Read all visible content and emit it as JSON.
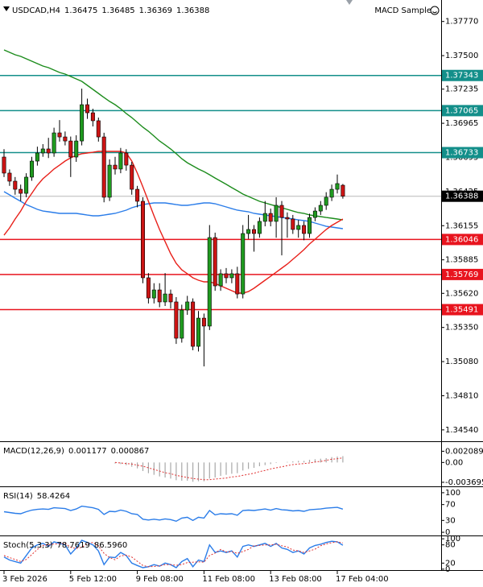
{
  "chart_data": {
    "type": "candlestick",
    "title": "USDCAD,H4",
    "expert": "MACD Sample",
    "up_color": "#1f9a1f",
    "down_color": "#cc1414",
    "current_color": "#000000",
    "categories": [
      "3 Feb 2026",
      null,
      null,
      null,
      null,
      null,
      null,
      null,
      null,
      null,
      null,
      null,
      "5 Feb 12:00",
      null,
      null,
      null,
      null,
      null,
      null,
      null,
      null,
      null,
      null,
      null,
      "9 Feb 08:00",
      null,
      null,
      null,
      null,
      null,
      null,
      null,
      null,
      null,
      null,
      null,
      "11 Feb 08:00",
      null,
      null,
      null,
      null,
      null,
      null,
      null,
      null,
      null,
      null,
      null,
      "13 Feb 08:00",
      null,
      null,
      null,
      null,
      null,
      null,
      null,
      null,
      null,
      null,
      null,
      "17 Feb 04:00",
      null
    ],
    "open": [
      1.36698,
      1.36571,
      1.36507,
      1.36443,
      1.36411,
      1.36539,
      1.36666,
      1.3673,
      1.36762,
      1.3673,
      1.36889,
      1.36857,
      1.36825,
      1.36698,
      1.36825,
      1.37112,
      1.37048,
      1.36985,
      1.36857,
      1.3638,
      1.36634,
      1.36603,
      1.3673,
      1.36634,
      1.36443,
      1.36348,
      1.35743,
      1.35583,
      1.35647,
      1.35552,
      1.35615,
      1.35552,
      1.35265,
      1.35488,
      1.35552,
      1.35201,
      1.35424,
      1.35361,
      1.36061,
      1.35679,
      1.35775,
      1.35743,
      1.35775,
      1.35615,
      1.36093,
      1.36125,
      1.36093,
      1.36189,
      1.36252,
      1.36189,
      1.36316,
      1.3622,
      1.36208,
      1.36125,
      1.36157,
      1.36093,
      1.3622,
      1.36271,
      1.36316,
      1.3638,
      1.36443,
      1.36475
    ],
    "high": [
      1.3676,
      1.366,
      1.3654,
      1.3648,
      1.3657,
      1.367,
      1.3678,
      1.368,
      1.3685,
      1.3693,
      1.3699,
      1.369,
      1.3686,
      1.3687,
      1.37239,
      1.3716,
      1.3708,
      1.3701,
      1.3689,
      1.3668,
      1.367,
      1.3677,
      1.3676,
      1.3666,
      1.3647,
      1.3638,
      1.3578,
      1.357,
      1.357,
      1.3578,
      1.3565,
      1.3559,
      1.3553,
      1.356,
      1.3558,
      1.3548,
      1.3546,
      1.3616,
      1.361,
      1.3581,
      1.3582,
      1.3581,
      1.3583,
      1.3616,
      1.3624,
      1.3616,
      1.3622,
      1.3635,
      1.3629,
      1.3638,
      1.3635,
      1.3626,
      1.3624,
      1.362,
      1.3619,
      1.3625,
      1.363,
      1.3635,
      1.3642,
      1.3648,
      1.3656,
      1.36485
    ],
    "low": [
      1.3654,
      1.3647,
      1.364,
      1.3635,
      1.3638,
      1.3651,
      1.3663,
      1.367,
      1.3669,
      1.367,
      1.3682,
      1.3679,
      1.3654,
      1.3666,
      1.3679,
      1.37,
      1.3694,
      1.3682,
      1.3634,
      1.3635,
      1.3656,
      1.3657,
      1.3659,
      1.364,
      1.363,
      1.357,
      1.3554,
      1.3554,
      1.3551,
      1.3552,
      1.355,
      1.3522,
      1.3523,
      1.3545,
      1.3517,
      1.3516,
      1.35042,
      1.3533,
      1.3564,
      1.3564,
      1.357,
      1.357,
      1.3558,
      1.3558,
      1.3605,
      1.3595,
      1.3606,
      1.3615,
      1.3615,
      1.3606,
      1.3592,
      1.3606,
      1.3609,
      1.3606,
      1.3604,
      1.3606,
      1.3619,
      1.3624,
      1.3628,
      1.3635,
      1.3641,
      1.36369
    ],
    "close": [
      1.36571,
      1.36507,
      1.36443,
      1.36411,
      1.36539,
      1.36666,
      1.3673,
      1.36762,
      1.3673,
      1.36889,
      1.36857,
      1.36825,
      1.36698,
      1.36825,
      1.37112,
      1.37048,
      1.36985,
      1.36857,
      1.3638,
      1.36634,
      1.36603,
      1.3673,
      1.36634,
      1.36443,
      1.36348,
      1.35743,
      1.35583,
      1.35647,
      1.35552,
      1.35615,
      1.35552,
      1.35265,
      1.35488,
      1.35552,
      1.35201,
      1.35424,
      1.35361,
      1.36061,
      1.35679,
      1.35775,
      1.35743,
      1.35775,
      1.35615,
      1.36093,
      1.36125,
      1.36093,
      1.36189,
      1.36252,
      1.36189,
      1.36316,
      1.3622,
      1.36208,
      1.36125,
      1.36157,
      1.36093,
      1.3622,
      1.36271,
      1.36316,
      1.3638,
      1.36443,
      1.36488,
      1.36388
    ],
    "ylim": [
      1.3445,
      1.3794
    ],
    "yticks": [
      {
        "value": 1.3777,
        "label": "1.37770"
      },
      {
        "value": 1.375,
        "label": "1.37500"
      },
      1.37235,
      1.36965,
      1.36695,
      1.36425,
      1.36155,
      1.35885,
      {
        "value": 1.3562,
        "label": "1.35620"
      },
      {
        "value": 1.3535,
        "label": "1.35350"
      },
      {
        "value": 1.3508,
        "label": "1.35080"
      },
      {
        "value": 1.3481,
        "label": "1.34810"
      },
      {
        "value": 1.3454,
        "label": "1.34540"
      }
    ],
    "levels": [
      {
        "value": 1.37343,
        "color": "#138f8a"
      },
      {
        "value": 1.37065,
        "color": "#138f8a"
      },
      {
        "value": 1.36733,
        "color": "#138f8a"
      },
      {
        "value": 1.36046,
        "color": "#e8141e"
      },
      {
        "value": 1.35769,
        "color": "#e8141e"
      },
      {
        "value": 1.35491,
        "color": "#e8141e"
      }
    ],
    "moving_averages": [
      {
        "color": "#1c8c1c",
        "values": [
          1.37545,
          1.37526,
          1.37507,
          1.37494,
          1.37475,
          1.37456,
          1.37437,
          1.37418,
          1.37405,
          1.37386,
          1.37367,
          1.37354,
          1.37335,
          1.37316,
          1.37297,
          1.37265,
          1.37233,
          1.37201,
          1.37169,
          1.37138,
          1.37112,
          1.3708,
          1.37042,
          1.3701,
          1.36972,
          1.36934,
          1.36902,
          1.36864,
          1.36825,
          1.36794,
          1.36762,
          1.36724,
          1.36685,
          1.36653,
          1.36628,
          1.36603,
          1.36583,
          1.36558,
          1.36532,
          1.36507,
          1.36482,
          1.36456,
          1.36431,
          1.36405,
          1.36386,
          1.36367,
          1.36348,
          1.36335,
          1.36322,
          1.3631,
          1.36297,
          1.36284,
          1.36271,
          1.36259,
          1.36252,
          1.3624,
          1.36233,
          1.36227,
          1.3622,
          1.36214,
          1.36208,
          1.36201
        ]
      },
      {
        "color": "#2b7de9",
        "values": [
          1.36424,
          1.36399,
          1.36373,
          1.36348,
          1.36322,
          1.36303,
          1.36284,
          1.36271,
          1.36265,
          1.36259,
          1.36252,
          1.36252,
          1.36252,
          1.36252,
          1.36246,
          1.36239,
          1.36233,
          1.36233,
          1.36239,
          1.36246,
          1.36252,
          1.36265,
          1.36278,
          1.36297,
          1.3631,
          1.36322,
          1.36329,
          1.36335,
          1.36335,
          1.36335,
          1.36329,
          1.36322,
          1.36316,
          1.36316,
          1.36322,
          1.36329,
          1.36335,
          1.36335,
          1.36329,
          1.36316,
          1.36303,
          1.3629,
          1.36278,
          1.36271,
          1.36265,
          1.36252,
          1.36246,
          1.36239,
          1.36233,
          1.36227,
          1.3622,
          1.36214,
          1.36208,
          1.36201,
          1.36195,
          1.36189,
          1.36176,
          1.36163,
          1.3615,
          1.36144,
          1.36138,
          1.36131
        ]
      },
      {
        "color": "#e8201a",
        "values": [
          1.3608,
          1.36138,
          1.36208,
          1.36271,
          1.36348,
          1.36411,
          1.36475,
          1.36526,
          1.36564,
          1.36603,
          1.36634,
          1.36666,
          1.36692,
          1.36711,
          1.36724,
          1.3673,
          1.36736,
          1.36743,
          1.36743,
          1.36743,
          1.36743,
          1.36743,
          1.3673,
          1.36666,
          1.36571,
          1.36462,
          1.36348,
          1.36233,
          1.36125,
          1.36029,
          1.35934,
          1.35857,
          1.35806,
          1.35775,
          1.35743,
          1.35724,
          1.35711,
          1.35711,
          1.35698,
          1.35679,
          1.3566,
          1.35641,
          1.35622,
          1.35622,
          1.35634,
          1.3566,
          1.35692,
          1.35724,
          1.35755,
          1.35787,
          1.35819,
          1.35851,
          1.35889,
          1.35927,
          1.35966,
          1.3601,
          1.36048,
          1.36087,
          1.36125,
          1.36157,
          1.36182,
          1.36208
        ]
      }
    ],
    "panels": [
      {
        "title": "MACD(12,26,9)",
        "ylim": [
          -0.00445,
          0.0035
        ],
        "yticks": [
          0.002089,
          {
            "value": 0,
            "label": "0.00"
          },
          -0.003695
        ],
        "series": [
          {
            "type": "bar",
            "color": "#a8a8a8",
            "values": [
              null,
              null,
              null,
              null,
              null,
              null,
              null,
              null,
              null,
              null,
              null,
              null,
              null,
              null,
              null,
              null,
              null,
              null,
              null,
              null,
              -0.0002,
              -0.0003,
              -0.0005,
              -0.0008,
              -0.0011,
              -0.0016,
              -0.002,
              -0.0023,
              -0.0026,
              -0.0028,
              -0.003,
              -0.0033,
              -0.0034,
              -0.0034,
              -0.0036,
              -0.0035,
              -0.0035,
              -0.003,
              -0.0028,
              -0.0025,
              -0.0023,
              -0.0021,
              -0.002,
              -0.0015,
              -0.0012,
              -0.001,
              -0.0007,
              -0.0005,
              -0.0003,
              -0.0001,
              0,
              0.0001,
              0.0002,
              0.0003,
              0.0003,
              0.0005,
              0.0006,
              0.0007,
              0.0008,
              0.001,
              0.0011,
              0.001177
            ]
          },
          {
            "type": "line",
            "color": "#e03030",
            "dashed": true,
            "values": [
              null,
              null,
              null,
              null,
              null,
              null,
              null,
              null,
              null,
              null,
              null,
              null,
              null,
              null,
              null,
              null,
              null,
              null,
              null,
              null,
              0,
              -0.0001,
              -0.0002,
              -0.0003,
              -0.0005,
              -0.0007,
              -0.001,
              -0.0013,
              -0.0016,
              -0.0019,
              -0.0021,
              -0.0024,
              -0.0026,
              -0.0028,
              -0.003,
              -0.0031,
              -0.0032,
              -0.0032,
              -0.0031,
              -0.003,
              -0.0029,
              -0.0027,
              -0.0026,
              -0.0024,
              -0.0022,
              -0.002,
              -0.0017,
              -0.0015,
              -0.0012,
              -0.001,
              -0.0008,
              -0.0006,
              -0.0004,
              -0.0003,
              -0.0002,
              -0.0001,
              0.0001,
              0.0002,
              0.0004,
              0.0006,
              0.0007,
              0.000867
            ]
          }
        ]
      },
      {
        "title": "RSI(14)",
        "ylim": [
          -8,
          110
        ],
        "yticks": [
          100,
          70,
          30,
          0
        ],
        "series": [
          {
            "type": "line",
            "color": "#2b7de9",
            "values": [
              52,
              50,
              48,
              47,
              52,
              56,
              58,
              59,
              58,
              62,
              61,
              60,
              55,
              59,
              66,
              64,
              62,
              58,
              45,
              53,
              52,
              56,
              53,
              47,
              45,
              33,
              31,
              33,
              31,
              34,
              32,
              28,
              36,
              38,
              30,
              38,
              36,
              55,
              44,
              47,
              46,
              47,
              43,
              55,
              56,
              55,
              57,
              59,
              56,
              60,
              57,
              56,
              54,
              55,
              53,
              57,
              58,
              59,
              61,
              62,
              63,
              58.4264
            ]
          }
        ]
      },
      {
        "title": "Stoch(5,3,3)",
        "ylim": [
          -3,
          103
        ],
        "yticks": [
          100,
          80,
          20,
          0
        ],
        "series": [
          {
            "type": "line",
            "color": "#2b7de9",
            "values": [
              40,
              30,
              25,
              20,
              45,
              70,
              80,
              85,
              75,
              90,
              85,
              80,
              50,
              70,
              95,
              88,
              80,
              60,
              15,
              40,
              38,
              55,
              45,
              20,
              12,
              5,
              8,
              15,
              10,
              20,
              15,
              5,
              25,
              35,
              8,
              30,
              25,
              80,
              55,
              60,
              55,
              60,
              40,
              75,
              80,
              75,
              80,
              85,
              75,
              85,
              70,
              65,
              55,
              60,
              50,
              70,
              78,
              82,
              88,
              92,
              90,
              78.7619
            ]
          },
          {
            "type": "line",
            "color": "#e03030",
            "dashed": true,
            "values": [
              45,
              38,
              32,
              25,
              32,
              48,
              65,
              78,
              80,
              83,
              83,
              85,
              72,
              68,
              72,
              84,
              88,
              76,
              52,
              38,
              31,
              44,
              46,
              40,
              26,
              12,
              8,
              9,
              11,
              15,
              15,
              13,
              15,
              22,
              23,
              24,
              23,
              45,
              53,
              65,
              57,
              58,
              52,
              58,
              65,
              77,
              78,
              80,
              80,
              82,
              77,
              73,
              63,
              60,
              55,
              60,
              66,
              77,
              83,
              87,
              90,
              86.596
            ],
            "value_labels": [
              null,
              null,
              null,
              null,
              null,
              null,
              null,
              null,
              null,
              null,
              null,
              null,
              null,
              null,
              null,
              null,
              null,
              null,
              null,
              null,
              null,
              null,
              null,
              null,
              null,
              null,
              null,
              null,
              null,
              null,
              null,
              null,
              null,
              null,
              null,
              null,
              null,
              null,
              null,
              null,
              null,
              null,
              null,
              null,
              null,
              null,
              null,
              null,
              null,
              null,
              null,
              null,
              null,
              null,
              null,
              null,
              null,
              null,
              null,
              null,
              null,
              "86.5960"
            ]
          }
        ]
      }
    ]
  }
}
